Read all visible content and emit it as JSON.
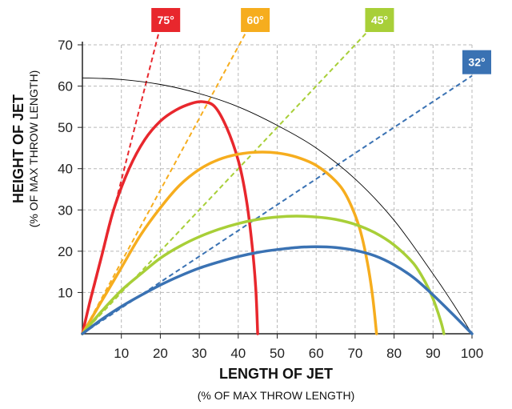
{
  "chart_data": {
    "type": "line",
    "xlabel": "LENGTH OF JET",
    "xlabel_sub": "(% OF MAX THROW LENGTH)",
    "ylabel": "HEIGHT OF JET",
    "ylabel_sub": "(% OF MAX THROW LENGTH)",
    "xlim": [
      0,
      100
    ],
    "ylim": [
      0,
      70
    ],
    "xticks": [
      10,
      20,
      30,
      40,
      50,
      60,
      70,
      80,
      90,
      100
    ],
    "yticks": [
      10,
      20,
      30,
      40,
      50,
      60,
      70
    ],
    "grid": true,
    "envelope": {
      "color": "#000000",
      "points": [
        [
          0,
          62
        ],
        [
          10,
          61.6
        ],
        [
          20,
          60.4
        ],
        [
          30,
          58.2
        ],
        [
          40,
          55
        ],
        [
          50,
          50.5
        ],
        [
          60,
          45
        ],
        [
          70,
          37.5
        ],
        [
          80,
          27.5
        ],
        [
          90,
          14.5
        ],
        [
          95,
          7.5
        ],
        [
          100,
          0
        ]
      ]
    },
    "series": [
      {
        "name": "75°",
        "color": "#e8272d",
        "angle_line": [
          [
            0,
            0
          ],
          [
            21.5,
            80
          ]
        ],
        "points": [
          [
            0,
            0
          ],
          [
            2,
            8
          ],
          [
            5,
            19
          ],
          [
            8,
            30
          ],
          [
            12,
            40
          ],
          [
            16,
            47
          ],
          [
            20,
            51.5
          ],
          [
            24,
            54.2
          ],
          [
            28,
            55.8
          ],
          [
            31,
            56.2
          ],
          [
            34,
            55
          ],
          [
            37,
            50
          ],
          [
            40,
            42
          ],
          [
            42,
            33
          ],
          [
            43.5,
            22
          ],
          [
            44.5,
            11
          ],
          [
            45,
            0
          ]
        ]
      },
      {
        "name": "60°",
        "color": "#f6ad1e",
        "angle_line": [
          [
            0,
            0
          ],
          [
            46,
            80
          ]
        ],
        "points": [
          [
            0,
            0
          ],
          [
            5,
            8
          ],
          [
            10,
            16
          ],
          [
            15,
            24
          ],
          [
            20,
            30.5
          ],
          [
            25,
            36
          ],
          [
            30,
            39.8
          ],
          [
            35,
            42.2
          ],
          [
            40,
            43.5
          ],
          [
            45,
            44
          ],
          [
            50,
            43.8
          ],
          [
            55,
            42.8
          ],
          [
            60,
            40.8
          ],
          [
            65,
            37
          ],
          [
            68,
            33
          ],
          [
            71,
            26
          ],
          [
            73,
            18
          ],
          [
            74.5,
            9
          ],
          [
            75.5,
            0
          ]
        ]
      },
      {
        "name": "45°",
        "color": "#a8cf38",
        "angle_line": [
          [
            0,
            0
          ],
          [
            80,
            80
          ]
        ],
        "points": [
          [
            0,
            0
          ],
          [
            5,
            5.5
          ],
          [
            10,
            10.5
          ],
          [
            15,
            14.5
          ],
          [
            20,
            18.3
          ],
          [
            25,
            21.2
          ],
          [
            30,
            23.5
          ],
          [
            35,
            25.3
          ],
          [
            40,
            26.7
          ],
          [
            45,
            27.7
          ],
          [
            50,
            28.3
          ],
          [
            55,
            28.5
          ],
          [
            60,
            28.3
          ],
          [
            65,
            27.7
          ],
          [
            70,
            26.5
          ],
          [
            75,
            24.5
          ],
          [
            80,
            21.5
          ],
          [
            85,
            17
          ],
          [
            88,
            12.5
          ],
          [
            90,
            8.5
          ],
          [
            92,
            3
          ],
          [
            92.8,
            0
          ]
        ]
      },
      {
        "name": "32°",
        "color": "#3a72b3",
        "angle_line": [
          [
            0,
            0
          ],
          [
            100,
            62.5
          ]
        ],
        "points": [
          [
            0,
            0
          ],
          [
            5,
            3.5
          ],
          [
            10,
            6.6
          ],
          [
            15,
            9.3
          ],
          [
            20,
            11.8
          ],
          [
            25,
            14
          ],
          [
            30,
            15.9
          ],
          [
            35,
            17.4
          ],
          [
            40,
            18.7
          ],
          [
            45,
            19.7
          ],
          [
            50,
            20.4
          ],
          [
            55,
            20.9
          ],
          [
            60,
            21.1
          ],
          [
            65,
            20.9
          ],
          [
            70,
            20.2
          ],
          [
            75,
            18.9
          ],
          [
            80,
            16.7
          ],
          [
            85,
            13.6
          ],
          [
            90,
            9.4
          ],
          [
            95,
            4.8
          ],
          [
            100,
            0
          ]
        ]
      }
    ]
  }
}
